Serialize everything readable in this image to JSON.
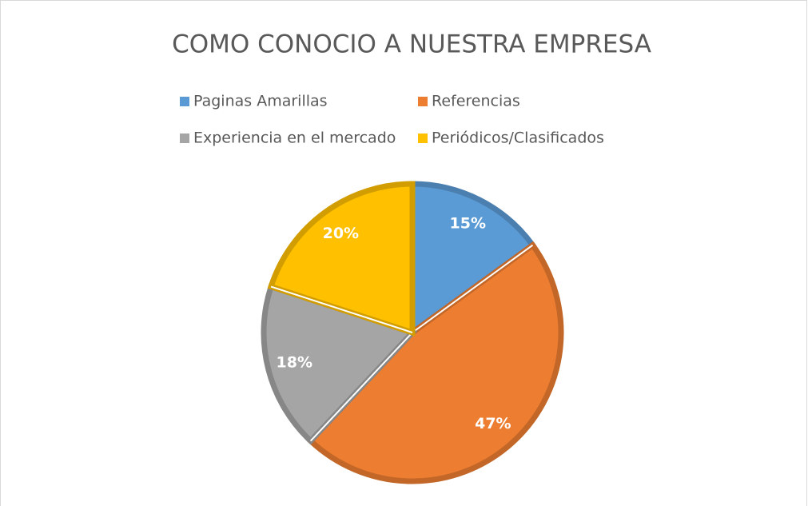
{
  "chart_data": {
    "type": "pie",
    "title": "COMO CONOCIO A NUESTRA EMPRESA",
    "categories": [
      "Paginas Amarillas",
      "Referencias",
      "Experiencia en el mercado",
      "Periódicos/Clasificados"
    ],
    "values": [
      15,
      47,
      18,
      20
    ],
    "value_labels": [
      "15%",
      "47%",
      "18%",
      "20%"
    ],
    "colors": [
      "#5b9bd5",
      "#ed7d31",
      "#a5a5a5",
      "#ffc000"
    ],
    "legend": "top"
  }
}
